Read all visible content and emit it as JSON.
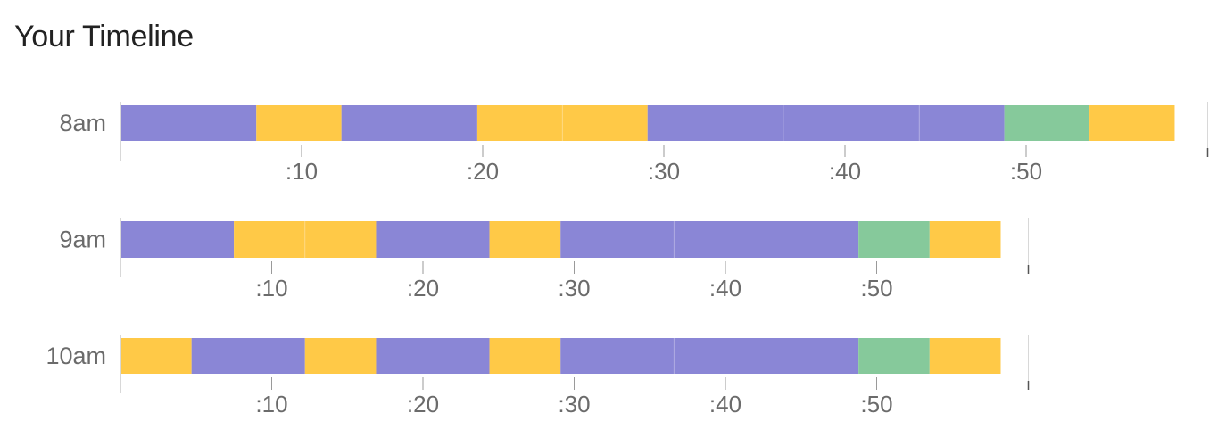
{
  "header": {
    "title": "Your Timeline"
  },
  "chart_data": {
    "type": "bar",
    "title": "Your Timeline",
    "xlabel": "",
    "ylabel": "",
    "x_tick_labels": [
      ":10",
      ":20",
      ":30",
      ":40",
      ":50"
    ],
    "x_ticks": [
      10,
      20,
      30,
      40,
      50
    ],
    "colors": {
      "purple": "#8a86d6",
      "yellow": "#ffc947",
      "green": "#86c99b"
    },
    "rows": [
      {
        "label": "8am",
        "xlim": [
          0,
          60
        ],
        "segments": [
          {
            "start": 0,
            "end": 7.5,
            "color": "purple"
          },
          {
            "start": 7.5,
            "end": 12.2,
            "color": "yellow"
          },
          {
            "start": 12.2,
            "end": 19.7,
            "color": "purple"
          },
          {
            "start": 19.7,
            "end": 24.4,
            "color": "yellow"
          },
          {
            "start": 24.4,
            "end": 29.1,
            "color": "yellow"
          },
          {
            "start": 29.1,
            "end": 36.6,
            "color": "purple"
          },
          {
            "start": 36.6,
            "end": 44.1,
            "color": "purple"
          },
          {
            "start": 44.1,
            "end": 48.8,
            "color": "purple"
          },
          {
            "start": 48.8,
            "end": 53.5,
            "color": "green"
          },
          {
            "start": 53.5,
            "end": 58.2,
            "color": "yellow"
          }
        ]
      },
      {
        "label": "9am",
        "xlim": [
          0,
          60
        ],
        "segments": [
          {
            "start": 0,
            "end": 7.5,
            "color": "purple"
          },
          {
            "start": 7.5,
            "end": 12.2,
            "color": "yellow"
          },
          {
            "start": 12.2,
            "end": 16.9,
            "color": "yellow"
          },
          {
            "start": 16.9,
            "end": 24.4,
            "color": "purple"
          },
          {
            "start": 24.4,
            "end": 29.1,
            "color": "yellow"
          },
          {
            "start": 29.1,
            "end": 36.6,
            "color": "purple"
          },
          {
            "start": 36.6,
            "end": 48.8,
            "color": "purple"
          },
          {
            "start": 48.8,
            "end": 53.5,
            "color": "green"
          },
          {
            "start": 53.5,
            "end": 58.2,
            "color": "yellow"
          }
        ]
      },
      {
        "label": "10am",
        "xlim": [
          0,
          60
        ],
        "segments": [
          {
            "start": 0,
            "end": 4.7,
            "color": "yellow"
          },
          {
            "start": 4.7,
            "end": 12.2,
            "color": "purple"
          },
          {
            "start": 12.2,
            "end": 16.9,
            "color": "yellow"
          },
          {
            "start": 16.9,
            "end": 24.4,
            "color": "purple"
          },
          {
            "start": 24.4,
            "end": 29.1,
            "color": "yellow"
          },
          {
            "start": 29.1,
            "end": 36.6,
            "color": "purple"
          },
          {
            "start": 36.6,
            "end": 48.8,
            "color": "purple"
          },
          {
            "start": 48.8,
            "end": 53.5,
            "color": "green"
          },
          {
            "start": 53.5,
            "end": 58.2,
            "color": "yellow"
          }
        ]
      }
    ]
  }
}
